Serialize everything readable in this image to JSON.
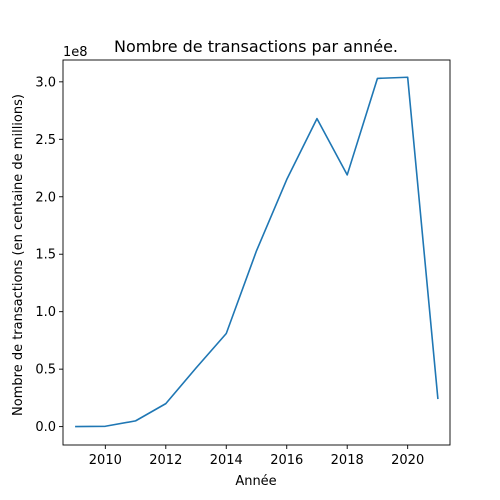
{
  "chart_data": {
    "type": "line",
    "title": "Nombre de transactions par année.",
    "xlabel": "Année",
    "ylabel": "Nombre de transactions (en centaine de millions)",
    "y_offset_text": "1e8",
    "xlim": [
      2008.6,
      2021.4
    ],
    "ylim": [
      -0.16,
      3.19
    ],
    "x_ticks": [
      2010,
      2012,
      2014,
      2016,
      2018,
      2020
    ],
    "x_tick_labels": [
      "2010",
      "2012",
      "2014",
      "2016",
      "2018",
      "2020"
    ],
    "y_ticks": [
      0.0,
      0.5,
      1.0,
      1.5,
      2.0,
      2.5,
      3.0
    ],
    "y_tick_labels": [
      "0.0",
      "0.5",
      "1.0",
      "1.5",
      "2.0",
      "2.5",
      "3.0"
    ],
    "grid": false,
    "series": [
      {
        "color": "#1f77b4",
        "x": [
          2009,
          2010,
          2011,
          2012,
          2013,
          2014,
          2015,
          2016,
          2017,
          2018,
          2019,
          2020,
          2021
        ],
        "values": [
          0.0,
          0.003,
          0.05,
          0.2,
          0.51,
          0.81,
          1.53,
          2.15,
          2.68,
          2.19,
          3.03,
          3.04,
          0.24
        ]
      }
    ]
  }
}
